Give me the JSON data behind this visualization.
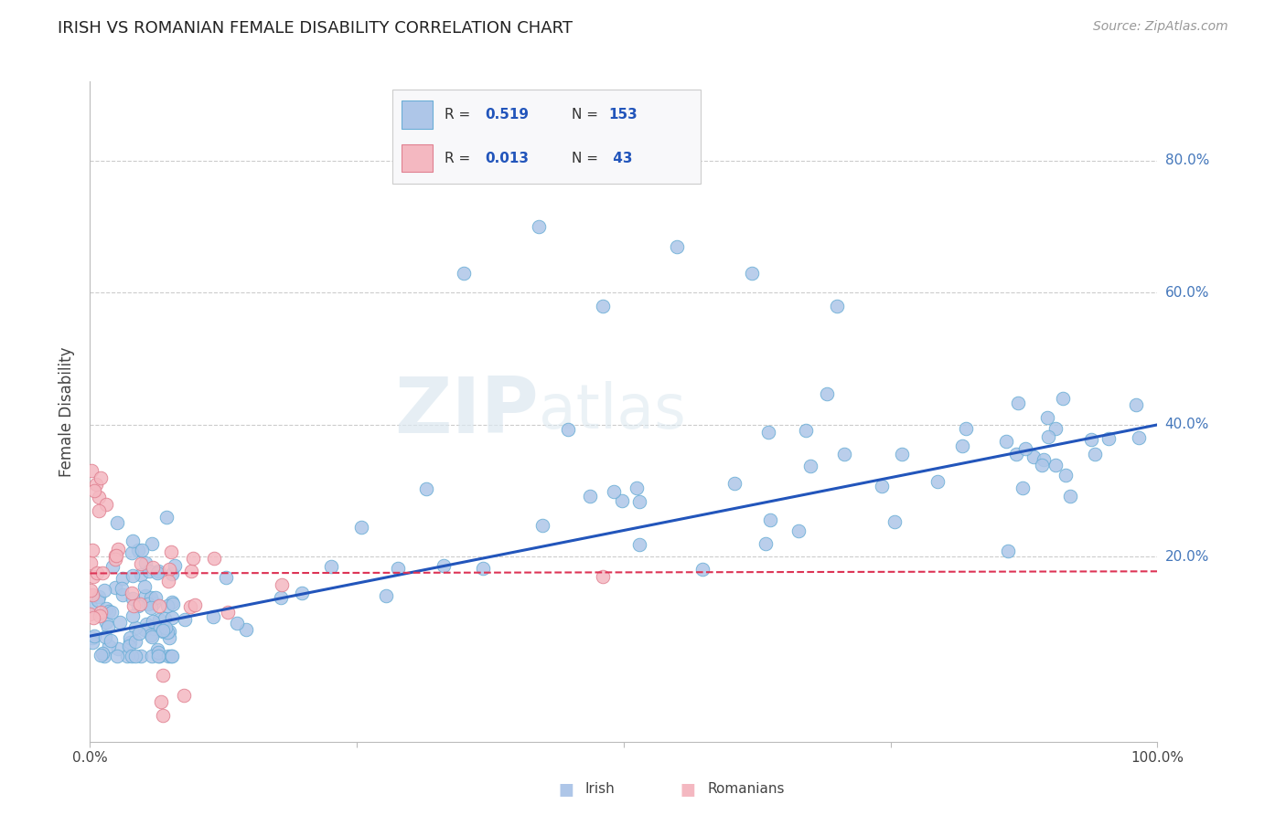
{
  "title": "IRISH VS ROMANIAN FEMALE DISABILITY CORRELATION CHART",
  "source": "Source: ZipAtlas.com",
  "ylabel": "Female Disability",
  "xlim": [
    0,
    1
  ],
  "ylim": [
    -0.08,
    0.92
  ],
  "irish_R": 0.519,
  "irish_N": 153,
  "romanian_R": 0.013,
  "romanian_N": 43,
  "irish_color": "#aec6e8",
  "irish_edge": "#6aaed6",
  "romanian_color": "#f4b8c1",
  "romanian_edge": "#e08090",
  "trend_irish_color": "#2255bb",
  "trend_romanian_color": "#dd3355",
  "trend_irish_start_y": 0.08,
  "trend_irish_end_y": 0.4,
  "trend_romanian_start_y": 0.175,
  "trend_romanian_end_y": 0.178,
  "watermark_zip": "ZIP",
  "watermark_atlas": "atlas",
  "background_color": "#ffffff",
  "grid_color": "#cccccc",
  "ytick_positions": [
    0.2,
    0.4,
    0.6,
    0.8
  ],
  "ytick_labels": [
    "20.0%",
    "40.0%",
    "60.0%",
    "80.0%"
  ],
  "ytick_color": "#4477bb",
  "title_fontsize": 13,
  "source_fontsize": 10,
  "legend_text_color": "#333333",
  "legend_value_color": "#2255bb"
}
